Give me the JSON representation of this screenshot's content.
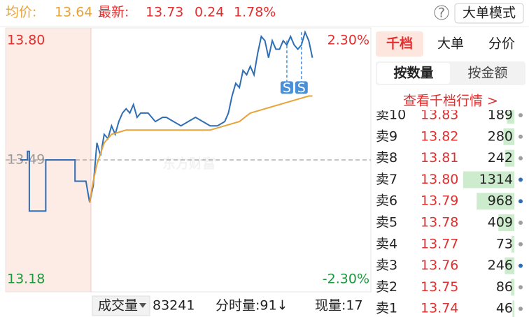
{
  "header": {
    "avg_label": "均价:",
    "avg_value": "13.64",
    "last_label": "最新:",
    "last_value": "13.73",
    "change": "0.24",
    "change_pct": "1.78%",
    "help": "?",
    "mode_button": "大单模式"
  },
  "chart_data": {
    "type": "line",
    "watermark": "东方财富",
    "ylim": [
      13.18,
      13.8
    ],
    "yticks": [
      {
        "value": 13.8,
        "label": "13.80"
      },
      13.49,
      13.18
    ],
    "y2lim": [
      -2.3,
      2.3
    ],
    "y2ticks": [
      {
        "value": 2.3,
        "label": "2.30%"
      },
      {
        "value": -2.3,
        "label": "-2.30%"
      }
    ],
    "xlim": [
      0,
      100
    ],
    "series": [
      {
        "color": "#2f6db5",
        "x": [
          4,
          6,
          6,
          6.5,
          6.5,
          11,
          11,
          19,
          19,
          21,
          22,
          23,
          24,
          25,
          26,
          27,
          28,
          29,
          30,
          31,
          32,
          33,
          34,
          35,
          36,
          37,
          39,
          41,
          43,
          44,
          46,
          48,
          50,
          52,
          54,
          56,
          58,
          60,
          61,
          62,
          63,
          64,
          65,
          66,
          67,
          68,
          69,
          70,
          71,
          72,
          73,
          74,
          75,
          76,
          77,
          78,
          79,
          80,
          81,
          82,
          83,
          84
        ],
        "values": [
          13.49,
          13.49,
          13.51,
          13.51,
          13.37,
          13.37,
          13.49,
          13.49,
          13.44,
          13.44,
          13.44,
          13.39,
          13.43,
          13.53,
          13.5,
          13.55,
          13.54,
          13.57,
          13.55,
          13.58,
          13.6,
          13.61,
          13.6,
          13.62,
          13.59,
          13.6,
          13.6,
          13.58,
          13.59,
          13.59,
          13.58,
          13.57,
          13.58,
          13.59,
          13.58,
          13.57,
          13.57,
          13.58,
          13.6,
          13.64,
          13.67,
          13.66,
          13.7,
          13.69,
          13.71,
          13.69,
          13.74,
          13.78,
          13.77,
          13.73,
          13.77,
          13.75,
          13.75,
          13.77,
          13.76,
          13.78,
          13.76,
          13.75,
          13.76,
          13.79,
          13.77,
          13.73
        ]
      },
      {
        "color": "#e8a23a",
        "x": [
          23,
          24,
          25,
          27,
          29,
          33,
          41,
          48,
          56,
          60,
          64,
          67,
          71,
          75,
          79,
          83,
          84
        ],
        "values": [
          13.39,
          13.44,
          13.48,
          13.53,
          13.55,
          13.56,
          13.56,
          13.56,
          13.56,
          13.57,
          13.58,
          13.6,
          13.61,
          13.62,
          13.63,
          13.64,
          13.64
        ]
      }
    ],
    "markers": [
      {
        "label": "S",
        "x": 77,
        "value": 13.66,
        "from": 13.77
      },
      {
        "label": "S",
        "x": 81,
        "value": 13.66,
        "from": 13.79
      }
    ]
  },
  "panel": {
    "tabs": [
      "千档",
      "大单",
      "分价"
    ],
    "subtabs": [
      "按数量",
      "按金额"
    ],
    "link": "查看千档行情 >",
    "rows": [
      {
        "label": "卖10",
        "price": "13.83",
        "volume": 189,
        "dot": "#9e9e9e"
      },
      {
        "label": "卖9",
        "price": "13.82",
        "volume": 280,
        "dot": "#9e9e9e"
      },
      {
        "label": "卖8",
        "price": "13.81",
        "volume": 242,
        "dot": "#9e9e9e"
      },
      {
        "label": "卖7",
        "price": "13.80",
        "volume": 1314,
        "dot": "#2f6db5"
      },
      {
        "label": "卖6",
        "price": "13.79",
        "volume": 968,
        "dot": "#2f6db5"
      },
      {
        "label": "卖5",
        "price": "13.78",
        "volume": 409,
        "dot": "#9e9e9e"
      },
      {
        "label": "卖4",
        "price": "13.77",
        "volume": 73,
        "dot": "#9e9e9e"
      },
      {
        "label": "卖3",
        "price": "13.76",
        "volume": 246,
        "dot": "#2f6db5"
      },
      {
        "label": "卖2",
        "price": "13.75",
        "volume": 86,
        "dot": "#9e9e9e"
      },
      {
        "label": "卖1",
        "price": "13.74",
        "volume": 46,
        "dot": "#9e9e9e"
      }
    ]
  },
  "footer": {
    "indicator": "成交量",
    "volume": "83241",
    "minute_volume": "分时量:91↓",
    "current_volume": "现量:17"
  }
}
